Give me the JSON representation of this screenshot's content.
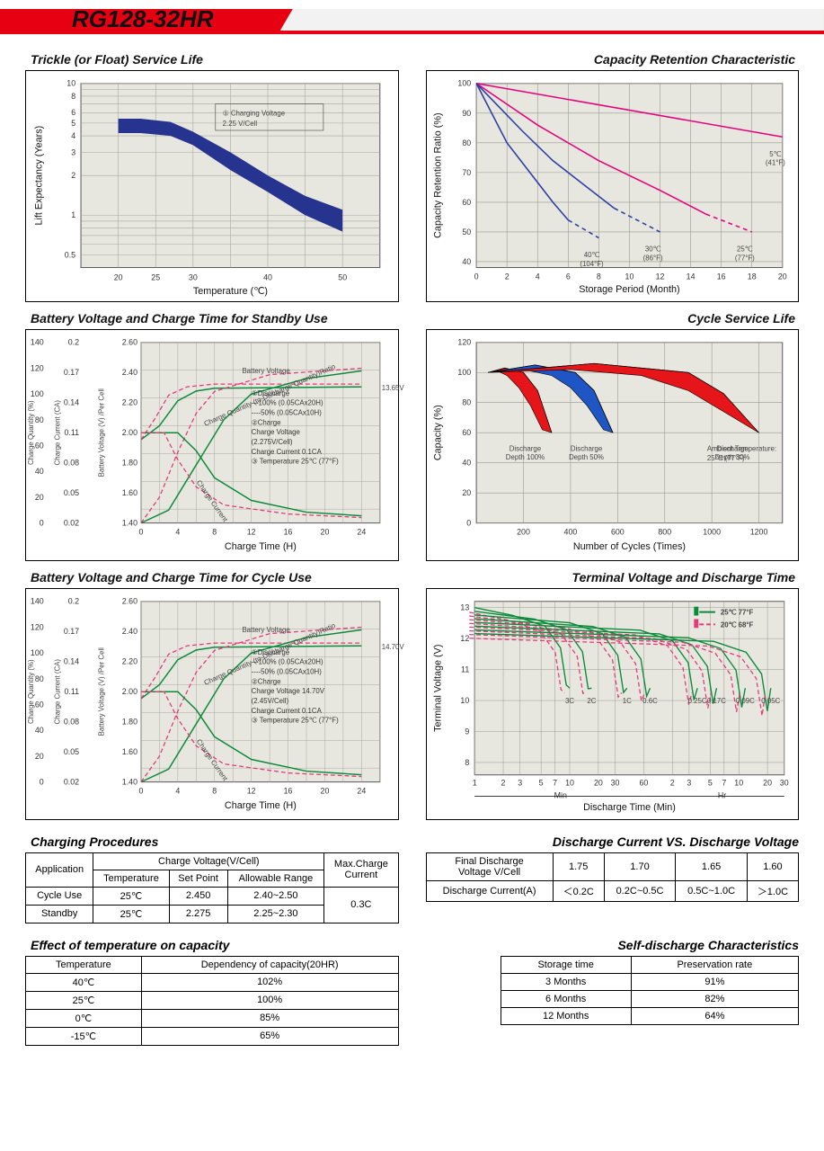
{
  "model": "RG128-32HR",
  "panels": {
    "trickle": {
      "title": "Trickle (or Float) Service Life",
      "xlabel": "Temperature (℃)",
      "ylabel": "Lift  Expectancy (Years)",
      "xticks": [
        20,
        25,
        30,
        40,
        50
      ],
      "yticks": [
        0.5,
        1,
        2,
        3,
        4,
        5,
        6,
        8,
        10
      ],
      "note": "① Charging Voltage\n2.25 V/Cell",
      "band_top": [
        [
          20,
          5.4
        ],
        [
          23,
          5.4
        ],
        [
          27,
          5.1
        ],
        [
          30,
          4.3
        ],
        [
          35,
          3.0
        ],
        [
          40,
          2.0
        ],
        [
          45,
          1.4
        ],
        [
          50,
          1.1
        ]
      ],
      "band_bot": [
        [
          20,
          4.2
        ],
        [
          23,
          4.2
        ],
        [
          27,
          4.0
        ],
        [
          30,
          3.4
        ],
        [
          35,
          2.2
        ],
        [
          40,
          1.5
        ],
        [
          45,
          1.0
        ],
        [
          50,
          0.75
        ]
      ],
      "band_color": "#26338f",
      "bg": "#e8e7df",
      "grid": "#a8a69c"
    },
    "capacity_retention": {
      "title": "Capacity Retention Characteristic",
      "xlabel": "Storage Period (Month)",
      "ylabel": "Capacity Retention Ratio (%)",
      "xticks": [
        0,
        2,
        4,
        6,
        8,
        10,
        12,
        14,
        16,
        18,
        20
      ],
      "yticks": [
        40,
        50,
        60,
        70,
        80,
        90,
        100
      ],
      "bg": "#e8e7df",
      "grid": "#9a988e",
      "lines": [
        {
          "label": "5℃\n(41°F)",
          "color": "#e6007e",
          "dash": "",
          "pts": [
            [
              0,
              100
            ],
            [
              20,
              82
            ]
          ]
        },
        {
          "label": "25℃\n(77°F)",
          "color": "#e6007e",
          "dash": "",
          "pts": [
            [
              0,
              100
            ],
            [
              4,
              86
            ],
            [
              8,
              74
            ],
            [
              12,
              64
            ],
            [
              15,
              56
            ]
          ],
          "dashpts": [
            [
              15,
              56
            ],
            [
              18,
              50
            ]
          ]
        },
        {
          "label": "30℃\n(86°F)",
          "color": "#2a3fa5",
          "dash": "",
          "pts": [
            [
              0,
              100
            ],
            [
              3,
              84
            ],
            [
              5,
              74
            ],
            [
              7,
              66
            ],
            [
              9,
              58
            ]
          ],
          "dashpts": [
            [
              9,
              58
            ],
            [
              12,
              50
            ]
          ]
        },
        {
          "label": "40℃\n(104°F)",
          "color": "#2a3fa5",
          "dash": "",
          "pts": [
            [
              0,
              100
            ],
            [
              2,
              80
            ],
            [
              3.5,
              70
            ],
            [
              5,
              60
            ],
            [
              6,
              54
            ]
          ],
          "dashpts": [
            [
              6,
              54
            ],
            [
              8,
              48
            ]
          ]
        }
      ]
    },
    "standby": {
      "title": "Battery Voltage and Charge Time for Standby Use",
      "xlabel": "Charge Time (H)",
      "y1": "Charge Quantity (%)",
      "y2": "Charge Current (CA)",
      "y3": "Battery Voltage (V) /Per Cell",
      "xticks": [
        0,
        4,
        8,
        12,
        16,
        20,
        24
      ],
      "y1ticks": [
        0,
        20,
        40,
        60,
        80,
        100,
        120,
        140
      ],
      "y2ticks": [
        0.02,
        0.05,
        0.08,
        0.11,
        0.14,
        0.17,
        0.2
      ],
      "y3ticks": [
        1.4,
        1.6,
        1.8,
        2.0,
        2.2,
        2.4,
        2.6
      ],
      "right_note": "13.65V",
      "legend": [
        "①Discharge",
        "—100% (0.05CAx20H)",
        "----50% (0.05CAx10H)",
        "②Charge",
        "Charge Voltage",
        "(2.275V/Cell)",
        "Charge Current 0.1CA",
        "③ Temperature 25℃ (77°F)"
      ],
      "labels": {
        "bv": "Battery Voltage",
        "cq": "Charge Quantity (to-Discharge Quantity)Ratio",
        "cc": "Charge Current"
      },
      "bg": "#e8e7df",
      "grid": "#a8a69c",
      "solid": "#0c8a3b",
      "dash": "#e23a7a"
    },
    "cycle_life": {
      "title": "Cycle Service Life",
      "xlabel": "Number of Cycles (Times)",
      "ylabel": "Capacity (%)",
      "xticks": [
        200,
        400,
        600,
        800,
        1000,
        1200
      ],
      "yticks": [
        0,
        20,
        40,
        60,
        80,
        100,
        120
      ],
      "bg": "#e8e7df",
      "grid": "#9a988e",
      "note": "Ambient Temperature:\n25℃ (77°F)",
      "curves": [
        {
          "label": "Discharge\nDepth 100%",
          "color": "#e6151a",
          "top": [
            [
              50,
              100
            ],
            [
              120,
              103
            ],
            [
              200,
              100
            ],
            [
              260,
              88
            ],
            [
              320,
              60
            ]
          ],
          "bot": [
            [
              50,
              100
            ],
            [
              90,
              101
            ],
            [
              130,
              98
            ],
            [
              180,
              90
            ],
            [
              230,
              78
            ],
            [
              280,
              62
            ],
            [
              320,
              60
            ]
          ]
        },
        {
          "label": "Discharge\nDepth 50%",
          "color": "#1f55c4",
          "top": [
            [
              50,
              100
            ],
            [
              250,
              105
            ],
            [
              420,
              100
            ],
            [
              500,
              88
            ],
            [
              580,
              60
            ]
          ],
          "bot": [
            [
              50,
              100
            ],
            [
              200,
              102
            ],
            [
              320,
              98
            ],
            [
              400,
              90
            ],
            [
              470,
              78
            ],
            [
              540,
              62
            ],
            [
              580,
              60
            ]
          ]
        },
        {
          "label": "Discharge\nDepth 30%",
          "color": "#e6151a",
          "top": [
            [
              50,
              100
            ],
            [
              500,
              106
            ],
            [
              900,
              100
            ],
            [
              1050,
              86
            ],
            [
              1200,
              60
            ]
          ],
          "bot": [
            [
              50,
              100
            ],
            [
              400,
              102
            ],
            [
              700,
              98
            ],
            [
              900,
              88
            ],
            [
              1050,
              74
            ],
            [
              1200,
              60
            ]
          ]
        }
      ]
    },
    "cycle_use": {
      "title": "Battery Voltage and Charge Time for Cycle Use",
      "right_note": "14.70V",
      "legend": [
        "①Discharge",
        "—100% (0.05CAx20H)",
        "----50% (0.05CAx10H)",
        "②Charge",
        "Charge Voltage 14.70V",
        "(2.45V/Cell)",
        "Charge Current 0.1CA",
        "③ Temperature 25℃ (77°F)"
      ]
    },
    "terminal": {
      "title": "Terminal Voltage and Discharge Time",
      "xlabel": "Discharge Time (Min)",
      "ylabel": "Terminal Voltage (V)",
      "yticks": [
        8,
        9,
        10,
        11,
        12,
        13
      ],
      "xsections": {
        "min": "Min",
        "hr": "Hr"
      },
      "xticks_min": [
        1,
        2,
        3,
        5,
        7,
        10,
        20,
        30,
        60
      ],
      "xticks_hr": [
        2,
        3,
        5,
        7,
        10,
        20,
        30
      ],
      "bg": "#e8e7df",
      "grid": "#9a988e",
      "legend": [
        {
          "label": "25℃ 77°F",
          "color": "#0c8a3b",
          "dash": ""
        },
        {
          "label": "20℃ 68°F",
          "color": "#e23a7a",
          "dash": "5,3"
        }
      ],
      "clabels": [
        "3C",
        "2C",
        "1C",
        "0.6C",
        "0.25C",
        "0.17C",
        "0.09C",
        "0.05C"
      ]
    }
  },
  "tables": {
    "charging": {
      "title": "Charging Procedures",
      "headers": {
        "app": "Application",
        "cv": "Charge Voltage(V/Cell)",
        "t": "Temperature",
        "sp": "Set Point",
        "ar": "Allowable Range",
        "mc": "Max.Charge\nCurrent"
      },
      "rows": [
        {
          "app": "Cycle Use",
          "t": "25℃",
          "sp": "2.450",
          "ar": "2.40~2.50"
        },
        {
          "app": "Standby",
          "t": "25℃",
          "sp": "2.275",
          "ar": "2.25~2.30"
        }
      ],
      "max": "0.3C"
    },
    "discharge_vs": {
      "title": "Discharge Current VS. Discharge Voltage",
      "h1": "Final Discharge\nVoltage V/Cell",
      "vals": [
        "1.75",
        "1.70",
        "1.65",
        "1.60"
      ],
      "h2": "Discharge Current(A)",
      "cur": [
        "＜0.2C",
        "0.2C~0.5C",
        "0.5C~1.0C",
        "＞1.0C"
      ]
    },
    "temp_capacity": {
      "title": "Effect of temperature on capacity",
      "cols": [
        "Temperature",
        "Dependency of capacity(20HR)"
      ],
      "rows": [
        [
          "40℃",
          "102%"
        ],
        [
          "25℃",
          "100%"
        ],
        [
          "0℃",
          "85%"
        ],
        [
          "-15℃",
          "65%"
        ]
      ]
    },
    "self_discharge": {
      "title": "Self-discharge Characteristics",
      "cols": [
        "Storage time",
        "Preservation rate"
      ],
      "rows": [
        [
          "3 Months",
          "91%"
        ],
        [
          "6 Months",
          "82%"
        ],
        [
          "12 Months",
          "64%"
        ]
      ]
    }
  }
}
